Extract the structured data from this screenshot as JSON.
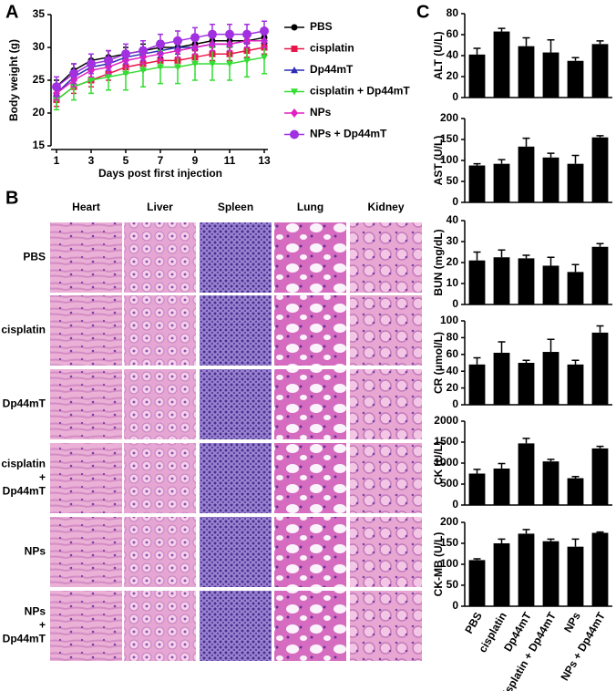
{
  "panel_labels": [
    "A",
    "B",
    "C"
  ],
  "chart_data": [
    {
      "type": "line",
      "xlabel": "Days post first injection",
      "ylabel": "Body weight (g)",
      "x": [
        1,
        2,
        3,
        4,
        5,
        6,
        7,
        8,
        9,
        10,
        11,
        12,
        13
      ],
      "xlim": [
        1,
        13
      ],
      "xticks": [
        1,
        3,
        5,
        7,
        9,
        11,
        13
      ],
      "ylim": [
        15,
        35
      ],
      "yticks": [
        15,
        20,
        25,
        30,
        35
      ],
      "series": [
        {
          "name": "PBS",
          "color": "#000000",
          "marker": "circle",
          "values": [
            24,
            26.5,
            28,
            28.5,
            29,
            29.5,
            30,
            30,
            30.5,
            31,
            31,
            31,
            31.5
          ],
          "errors": [
            1,
            1,
            1,
            1,
            1,
            1,
            1,
            1,
            1,
            1,
            1,
            1,
            1
          ]
        },
        {
          "name": "cisplatin",
          "color": "#e8174a",
          "marker": "square",
          "values": [
            22,
            24,
            25,
            26,
            27,
            27.5,
            28,
            28,
            28.5,
            29,
            29,
            29.5,
            30
          ],
          "errors": [
            1,
            1,
            1,
            1,
            1,
            1,
            1,
            1,
            1,
            1,
            1,
            1,
            1
          ]
        },
        {
          "name": "Dp44mT",
          "color": "#2b2bb5",
          "marker": "triangle",
          "values": [
            23,
            25.5,
            27,
            27.5,
            28.5,
            29,
            29.5,
            30,
            30,
            30.5,
            30.5,
            31,
            31
          ],
          "errors": [
            1,
            1,
            1,
            1,
            1,
            1,
            1,
            1,
            1,
            1,
            1,
            1,
            1
          ]
        },
        {
          "name": "cisplatin + Dp44mT",
          "color": "#33dd33",
          "marker": "triangle-down",
          "values": [
            22,
            24,
            25,
            25.5,
            26,
            26.5,
            27,
            27,
            27.5,
            27.5,
            27.5,
            28,
            28.5
          ],
          "errors": [
            1.5,
            2,
            2,
            2,
            2.5,
            2.5,
            2.5,
            2.5,
            2.5,
            2.5,
            2.5,
            2.5,
            2.5
          ]
        },
        {
          "name": "NPs",
          "color": "#e020c0",
          "marker": "diamond",
          "values": [
            23,
            25,
            26.5,
            27,
            28,
            28.5,
            29,
            29.5,
            30,
            30.5,
            30.5,
            31,
            31
          ],
          "errors": [
            1,
            1,
            1,
            1,
            1,
            1,
            1,
            1,
            1,
            1,
            1,
            1,
            1
          ]
        },
        {
          "name": "NPs + Dp44mT",
          "color": "#a030e0",
          "marker": "circle-large",
          "values": [
            24,
            26,
            27.5,
            28,
            29,
            29.5,
            30.5,
            31,
            31.5,
            32,
            32,
            32,
            32.5
          ],
          "errors": [
            1.5,
            1.5,
            1.5,
            1.5,
            1.5,
            1.5,
            1.5,
            1.5,
            1.5,
            1.5,
            1.5,
            1.5,
            1.5
          ]
        }
      ]
    },
    {
      "type": "bar",
      "ylabel": "ALT (U/L)",
      "color": "#000000",
      "ylim": [
        0,
        80
      ],
      "yticks": [
        0,
        20,
        40,
        60,
        80
      ],
      "values": [
        41,
        63,
        49,
        43,
        35,
        51
      ],
      "errors": [
        6,
        3,
        8,
        12,
        3,
        3
      ]
    },
    {
      "type": "bar",
      "ylabel": "AST (U/L)",
      "color": "#000000",
      "ylim": [
        0,
        200
      ],
      "yticks": [
        0,
        50,
        100,
        150,
        200
      ],
      "values": [
        88,
        92,
        133,
        107,
        92,
        155
      ],
      "errors": [
        4,
        10,
        20,
        10,
        20,
        4
      ]
    },
    {
      "type": "bar",
      "ylabel": "BUN (mg/dL)",
      "color": "#000000",
      "ylim": [
        0,
        40
      ],
      "yticks": [
        0,
        10,
        20,
        30,
        40
      ],
      "values": [
        21,
        22.5,
        22,
        18.5,
        15.5,
        27.5
      ],
      "errors": [
        4,
        3.5,
        1.5,
        4,
        3.5,
        1.5
      ]
    },
    {
      "type": "bar",
      "ylabel": "CR (μmol/L)",
      "color": "#000000",
      "ylim": [
        0,
        100
      ],
      "yticks": [
        0,
        20,
        40,
        60,
        80,
        100
      ],
      "values": [
        48,
        62,
        50,
        63,
        48,
        86
      ],
      "errors": [
        8,
        13,
        3,
        15,
        5,
        8
      ]
    },
    {
      "type": "bar",
      "ylabel": "CK (U/L)",
      "color": "#000000",
      "ylim": [
        0,
        2000
      ],
      "yticks": [
        0,
        500,
        1000,
        1500,
        2000
      ],
      "values": [
        750,
        870,
        1470,
        1040,
        640,
        1350
      ],
      "errors": [
        100,
        120,
        120,
        50,
        40,
        50
      ]
    },
    {
      "type": "bar",
      "ylabel": "CK-MB (U/L)",
      "color": "#000000",
      "ylim": [
        0,
        200
      ],
      "yticks": [
        0,
        50,
        100,
        150,
        200
      ],
      "categories": [
        "PBS",
        "cisplatin",
        "Dp44mT",
        "cisplatin + Dp44mT",
        "NPs",
        "NPs + Dp44mT"
      ],
      "values": [
        110,
        150,
        173,
        155,
        142,
        175
      ],
      "errors": [
        3,
        10,
        10,
        5,
        18,
        2
      ]
    }
  ],
  "histology": {
    "columns": [
      "Heart",
      "Liver",
      "Spleen",
      "Lung",
      "Kidney"
    ],
    "rows": [
      [
        "PBS"
      ],
      [
        "cisplatin"
      ],
      [
        "Dp44mT"
      ],
      [
        "cisplatin",
        "+",
        "Dp44mT"
      ],
      [
        "NPs"
      ],
      [
        "NPs",
        "+",
        "Dp44mT"
      ]
    ]
  }
}
